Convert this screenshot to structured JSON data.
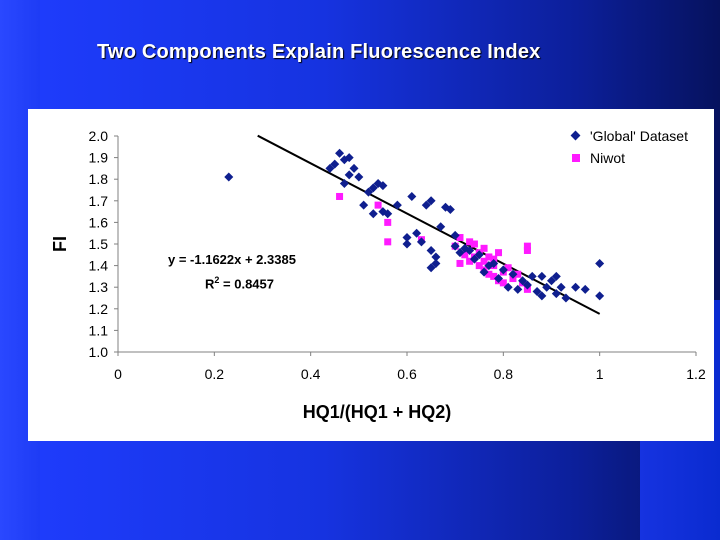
{
  "slide": {
    "title": "Two Components Explain Fluorescence Index"
  },
  "colors": {
    "global": "#0f1f8f",
    "niwot": "#ff1aff",
    "trendline": "#000000",
    "background_blue": "#1f3dff"
  },
  "chart_data": {
    "type": "scatter",
    "xlabel": "HQ1/(HQ1 + HQ2)",
    "ylabel": "FI",
    "xlim": [
      0,
      1.2
    ],
    "ylim": [
      1.0,
      2.0
    ],
    "x_ticks": [
      "0",
      "0.2",
      "0.4",
      "0.6",
      "0.8",
      "1",
      "1.2"
    ],
    "y_ticks": [
      "1.0",
      "1.1",
      "1.2",
      "1.3",
      "1.4",
      "1.5",
      "1.6",
      "1.7",
      "1.8",
      "1.9",
      "2.0"
    ],
    "grid": false,
    "legend_position": "top-right",
    "equation": {
      "line1": "y = -1.1622x + 2.3385",
      "r2_prefix": "R",
      "r2_sup": "2",
      "r2_suffix": " = 0.8457"
    },
    "trendline": {
      "slope": -1.1622,
      "intercept": 2.3385,
      "x_range": [
        0.29,
        1.0
      ]
    },
    "series": [
      {
        "name": "'Global' Dataset",
        "marker": "diamond",
        "points": [
          [
            0.23,
            1.81
          ],
          [
            0.44,
            1.85
          ],
          [
            0.45,
            1.87
          ],
          [
            0.46,
            1.92
          ],
          [
            0.47,
            1.89
          ],
          [
            0.48,
            1.9
          ],
          [
            0.49,
            1.85
          ],
          [
            0.48,
            1.82
          ],
          [
            0.5,
            1.81
          ],
          [
            0.47,
            1.78
          ],
          [
            0.51,
            1.68
          ],
          [
            0.52,
            1.74
          ],
          [
            0.53,
            1.76
          ],
          [
            0.54,
            1.78
          ],
          [
            0.55,
            1.77
          ],
          [
            0.53,
            1.64
          ],
          [
            0.55,
            1.65
          ],
          [
            0.56,
            1.64
          ],
          [
            0.58,
            1.68
          ],
          [
            0.61,
            1.72
          ],
          [
            0.64,
            1.68
          ],
          [
            0.65,
            1.7
          ],
          [
            0.67,
            1.58
          ],
          [
            0.68,
            1.67
          ],
          [
            0.69,
            1.66
          ],
          [
            0.6,
            1.5
          ],
          [
            0.6,
            1.53
          ],
          [
            0.62,
            1.55
          ],
          [
            0.63,
            1.51
          ],
          [
            0.65,
            1.47
          ],
          [
            0.66,
            1.44
          ],
          [
            0.65,
            1.39
          ],
          [
            0.66,
            1.41
          ],
          [
            0.7,
            1.54
          ],
          [
            0.7,
            1.49
          ],
          [
            0.71,
            1.46
          ],
          [
            0.72,
            1.48
          ],
          [
            0.74,
            1.43
          ],
          [
            0.75,
            1.45
          ],
          [
            0.76,
            1.37
          ],
          [
            0.78,
            1.41
          ],
          [
            0.79,
            1.34
          ],
          [
            0.8,
            1.38
          ],
          [
            0.81,
            1.3
          ],
          [
            0.82,
            1.36
          ],
          [
            0.83,
            1.29
          ],
          [
            0.84,
            1.33
          ],
          [
            0.85,
            1.31
          ],
          [
            0.86,
            1.35
          ],
          [
            0.87,
            1.28
          ],
          [
            0.88,
            1.26
          ],
          [
            0.88,
            1.35
          ],
          [
            0.89,
            1.3
          ],
          [
            0.9,
            1.33
          ],
          [
            0.91,
            1.27
          ],
          [
            0.91,
            1.35
          ],
          [
            0.92,
            1.3
          ],
          [
            0.93,
            1.25
          ],
          [
            0.95,
            1.3
          ],
          [
            0.97,
            1.29
          ],
          [
            1.0,
            1.26
          ],
          [
            1.0,
            1.41
          ],
          [
            0.77,
            1.4
          ],
          [
            0.73,
            1.47
          ]
        ]
      },
      {
        "name": "Niwot",
        "marker": "square",
        "points": [
          [
            0.46,
            1.72
          ],
          [
            0.54,
            1.68
          ],
          [
            0.56,
            1.6
          ],
          [
            0.56,
            1.51
          ],
          [
            0.63,
            1.52
          ],
          [
            0.7,
            1.49
          ],
          [
            0.71,
            1.53
          ],
          [
            0.72,
            1.45
          ],
          [
            0.73,
            1.42
          ],
          [
            0.74,
            1.5
          ],
          [
            0.74,
            1.44
          ],
          [
            0.75,
            1.4
          ],
          [
            0.75,
            1.46
          ],
          [
            0.76,
            1.38
          ],
          [
            0.76,
            1.42
          ],
          [
            0.77,
            1.36
          ],
          [
            0.77,
            1.44
          ],
          [
            0.78,
            1.35
          ],
          [
            0.78,
            1.4
          ],
          [
            0.79,
            1.33
          ],
          [
            0.79,
            1.46
          ],
          [
            0.8,
            1.37
          ],
          [
            0.8,
            1.32
          ],
          [
            0.81,
            1.39
          ],
          [
            0.82,
            1.34
          ],
          [
            0.83,
            1.36
          ],
          [
            0.84,
            1.32
          ],
          [
            0.85,
            1.29
          ],
          [
            0.85,
            1.47
          ],
          [
            0.85,
            1.49
          ],
          [
            0.73,
            1.51
          ],
          [
            0.76,
            1.48
          ],
          [
            0.78,
            1.43
          ],
          [
            0.71,
            1.41
          ]
        ]
      }
    ]
  }
}
